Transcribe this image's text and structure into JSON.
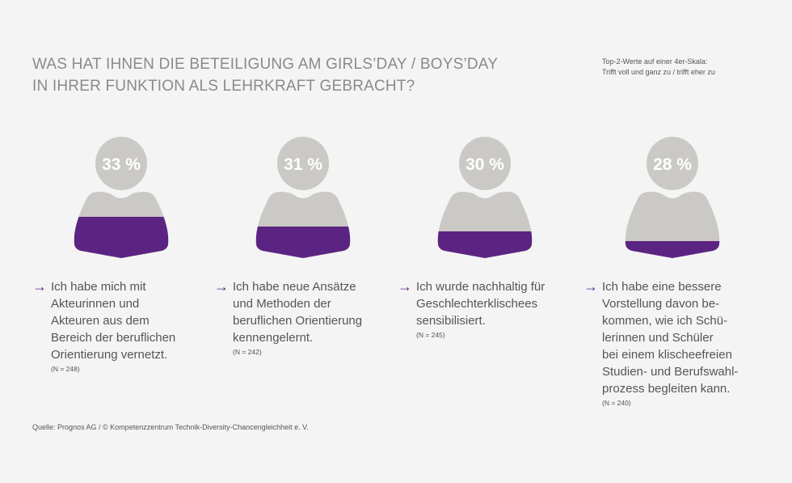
{
  "title_lines": [
    "WAS HAT IHNEN DIE BETEILIGUNG AM GIRLS’DAY / BOYS’DAY",
    "IN IHRER FUNKTION ALS LEHRKRAFT GEBRACHT?"
  ],
  "scale_note": [
    "Top-2-Werte auf einer 4er-Skala:",
    "Trifft voll und ganz zu / trifft eher zu"
  ],
  "colors": {
    "fill": "#5c2482",
    "figure": "#cbc9c5",
    "percent_text": "#ffffff"
  },
  "chart_data": {
    "type": "pictogram",
    "unit": "%",
    "items": [
      {
        "value": 33,
        "label": "33 %",
        "statement": "Ich habe mich mit\nAkteurinnen und\nAkteuren aus dem\nBereich der beruflichen\nOrientierung vernetzt.",
        "n": "(N = 248)"
      },
      {
        "value": 31,
        "label": "31 %",
        "statement": "Ich habe neue Ansätze\nund Methoden der\nberuflichen Orientierung\nkennengelernt.",
        "n": "(N = 242)"
      },
      {
        "value": 30,
        "label": "30 %",
        "statement": "Ich wurde nachhaltig für\nGeschlechterklischees\nsensibilisiert.",
        "n": "(N = 245)"
      },
      {
        "value": 28,
        "label": "28 %",
        "statement": "Ich habe eine bessere\nVorstellung davon be-\nkommen, wie ich Schü-\nlerinnen und Schüler\nbei einem klischeefreien\nStudien- und Berufswahl-\nprozess begleiten kann.",
        "n": "(N = 240)"
      }
    ]
  },
  "arrow_icon": "→",
  "source": "Quelle: Prognos AG / © Kompetenzzentrum Technik-Diversity-Chancengleichheit e. V."
}
